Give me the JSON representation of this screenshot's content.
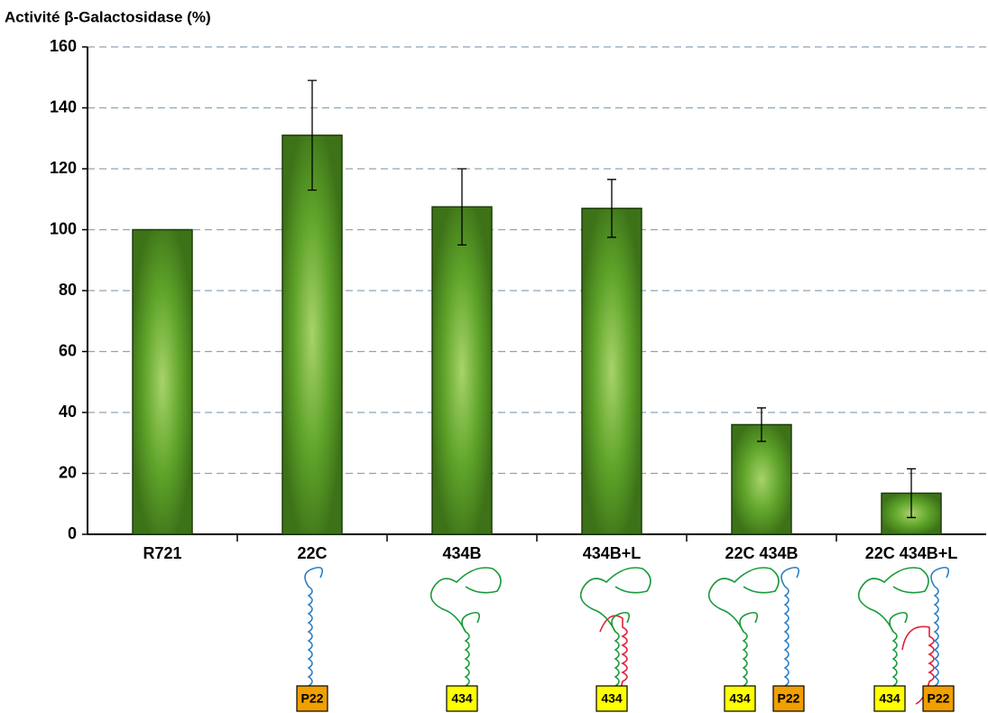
{
  "chart_data": {
    "type": "bar",
    "title": "Activité β-Galactosidase (%)",
    "categories": [
      "R721",
      "22C",
      "434B",
      "434B+L",
      "22C 434B",
      "22C 434B+L"
    ],
    "values": [
      100,
      131,
      107.5,
      107,
      36,
      13.5
    ],
    "errors": [
      null,
      18,
      12.5,
      9.5,
      5.5,
      8
    ],
    "color": "#4f8a1e",
    "ylim": [
      0,
      160
    ],
    "yticks": [
      0,
      20,
      40,
      60,
      80,
      100,
      120,
      140,
      160
    ],
    "grid": true,
    "constructs": [
      null,
      [
        {
          "label": "P22",
          "color": "#f0a000"
        }
      ],
      [
        {
          "label": "434",
          "color": "#ffff00"
        }
      ],
      [
        {
          "label": "434",
          "color": "#ffff00"
        }
      ],
      [
        {
          "label": "434",
          "color": "#ffff00"
        },
        {
          "label": "P22",
          "color": "#f0a000"
        }
      ],
      [
        {
          "label": "434",
          "color": "#ffff00"
        },
        {
          "label": "P22",
          "color": "#f0a000"
        }
      ]
    ]
  }
}
